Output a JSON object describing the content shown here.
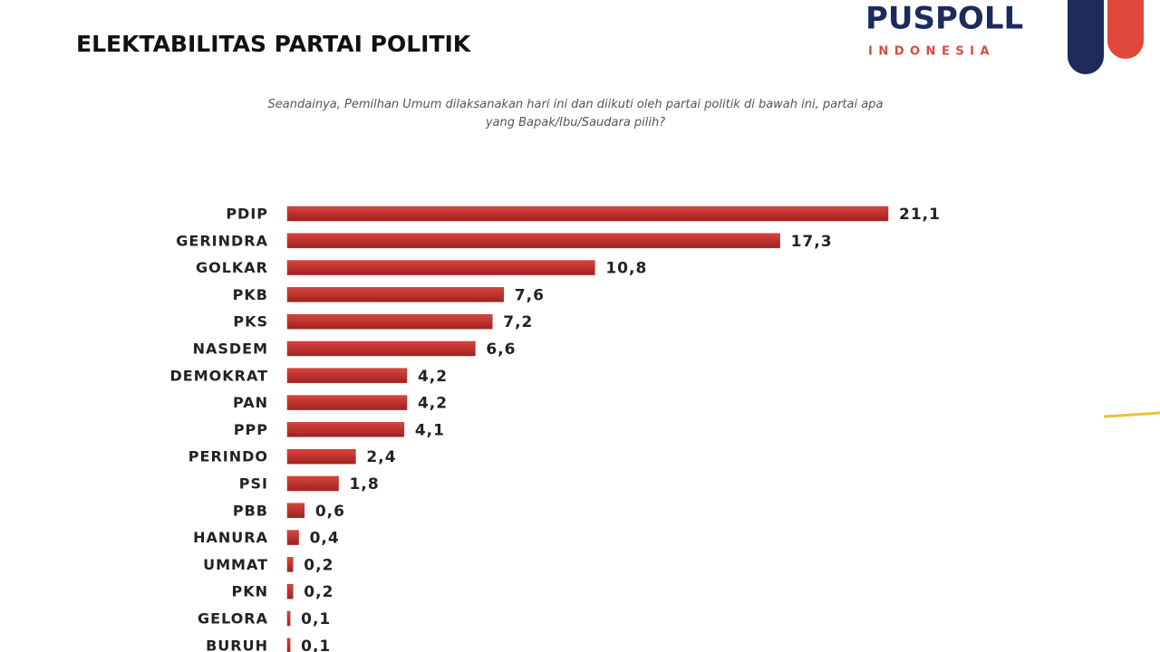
{
  "chart_data": {
    "type": "bar",
    "orientation": "horizontal",
    "title": "ELEKTABILITAS PARTAI POLITIK",
    "subtitle": "Seandainya, Pemilhan Umum dilaksanakan hari ini dan diikuti oleh partai politik di bawah ini, partai apa yang Bapak/Ibu/Saudara pilih?",
    "logo": {
      "name": "PUSPOLL",
      "country": "INDONESIA"
    },
    "categories": [
      "PDIP",
      "GERINDRA",
      "GOLKAR",
      "PKB",
      "PKS",
      "NASDEM",
      "DEMOKRAT",
      "PAN",
      "PPP",
      "PERINDO",
      "PSI",
      "PBB",
      "HANURA",
      "UMMAT",
      "PKN",
      "GELORA",
      "BURUH"
    ],
    "values": [
      21.1,
      17.3,
      10.8,
      7.6,
      7.2,
      6.6,
      4.2,
      4.2,
      4.1,
      2.4,
      1.8,
      0.6,
      0.4,
      0.2,
      0.2,
      0.1,
      0.1
    ],
    "value_labels": [
      "21,1",
      "17,3",
      "10,8",
      "7,6",
      "7,2",
      "6,6",
      "4,2",
      "4,2",
      "4,1",
      "2,4",
      "1,8",
      "0,6",
      "0,4",
      "0,2",
      "0,2",
      "0,1",
      "0,1"
    ],
    "color": "#bf2e2a"
  }
}
